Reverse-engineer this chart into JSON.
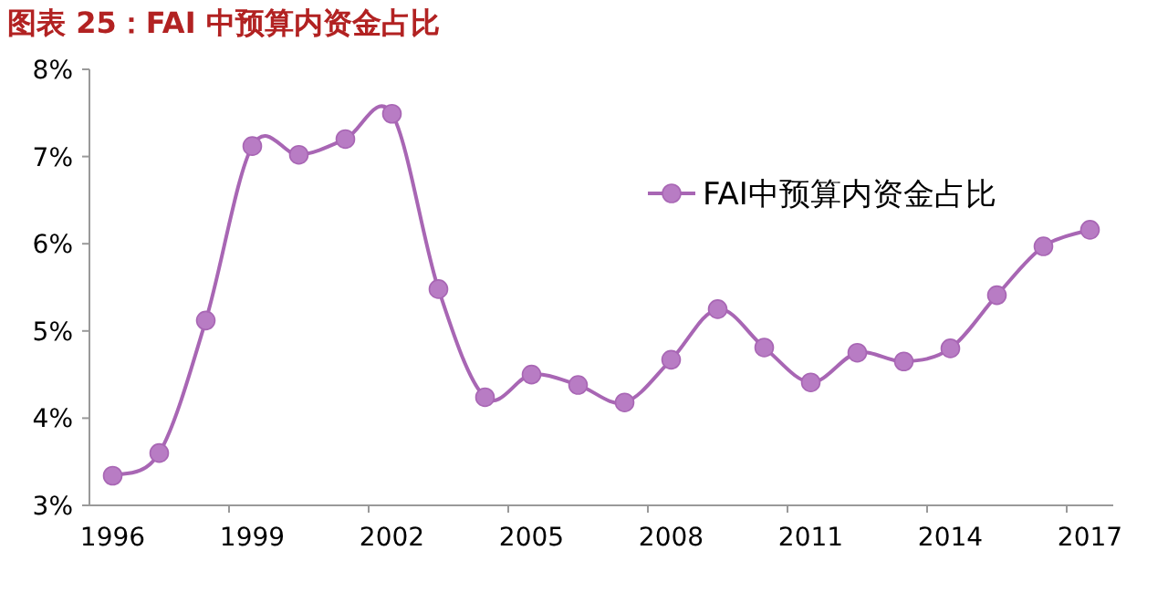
{
  "chart_data": {
    "type": "line",
    "title": "图表 25：FAI 中预算内资金占比",
    "categories": [
      "1996",
      null,
      null,
      "1999",
      null,
      null,
      "2002",
      null,
      null,
      "2005",
      null,
      null,
      "2008",
      null,
      null,
      "2011",
      null,
      null,
      "2014",
      null,
      null,
      "2017"
    ],
    "series": [
      {
        "name": "FAI中预算内资金占比",
        "color": "#a866b4",
        "values": [
          3.34,
          3.6,
          5.12,
          7.12,
          7.02,
          7.2,
          7.49,
          5.48,
          4.24,
          4.5,
          4.38,
          4.18,
          4.67,
          5.25,
          4.81,
          4.41,
          4.75,
          4.65,
          4.8,
          5.41,
          5.97,
          6.16
        ]
      }
    ],
    "ylim": [
      3,
      8
    ],
    "yticks": [
      {
        "value": 3,
        "label": "3%"
      },
      {
        "value": 4,
        "label": "4%"
      },
      {
        "value": 5,
        "label": "5%"
      },
      {
        "value": 6,
        "label": "6%"
      },
      {
        "value": 7,
        "label": "7%"
      },
      {
        "value": 8,
        "label": "8%"
      }
    ],
    "marker": "circle",
    "legend": "top right",
    "grid": false
  }
}
